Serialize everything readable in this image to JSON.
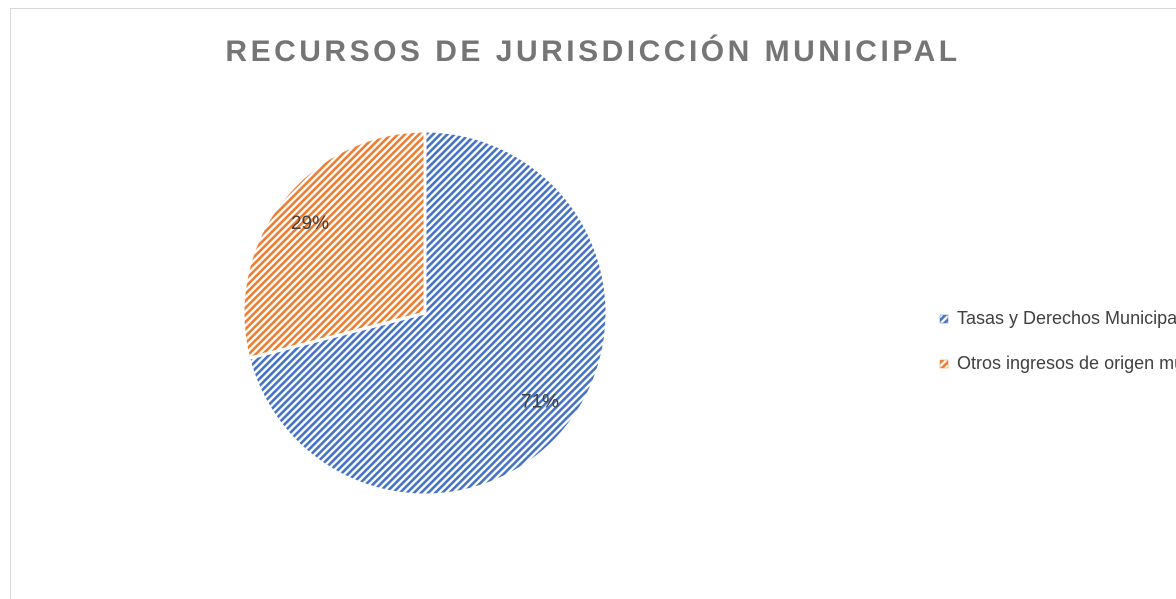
{
  "chart_data": {
    "type": "pie",
    "title": "RECURSOS DE JURISDICCIÓN MUNICIPAL",
    "categories": [
      "Tasas y Derechos Municipales",
      "Otros ingresos de origen municipal"
    ],
    "values": [
      71,
      29
    ],
    "value_labels": [
      "71%",
      "29%"
    ],
    "colors": [
      "#4472c4",
      "#ed7d31"
    ],
    "legend": "right"
  }
}
